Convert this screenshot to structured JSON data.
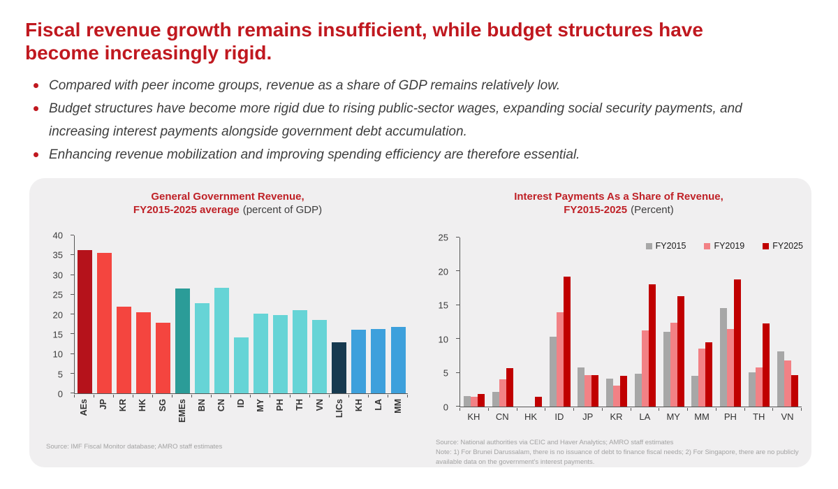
{
  "slide": {
    "title_line1": "Fiscal revenue growth remains insufficient, while budget structures have",
    "title_line2": "become increasingly rigid.",
    "bullets": [
      "Compared with peer income groups, revenue as a share of GDP remains relatively low.",
      "Budget structures have become more rigid due to rising public-sector wages, expanding social security payments, and increasing interest payments alongside government debt accumulation.",
      "Enhancing revenue mobilization and improving spending efficiency are therefore essential."
    ],
    "colors": {
      "title_red": "#c0181f",
      "chart_title_red": "#bf2127",
      "body_text": "#3d3d3d",
      "card_bg": "#f0eff0",
      "axis": "#555555",
      "muted_text": "#a2a2a2"
    }
  },
  "chart_data": [
    {
      "type": "bar",
      "title_line1": "General Government Revenue,",
      "title_line2_red": "FY2015-2025 average",
      "title_line2_black": "(percent of GDP)",
      "categories": [
        "AEs",
        "JP",
        "KR",
        "HK",
        "SG",
        "EMEs",
        "BN",
        "CN",
        "ID",
        "MY",
        "PH",
        "TH",
        "VN",
        "LICs",
        "KH",
        "LA",
        "MM"
      ],
      "values": [
        36.2,
        35.5,
        22.0,
        20.6,
        17.9,
        26.6,
        22.8,
        26.8,
        14.2,
        20.2,
        19.8,
        21.0,
        18.6,
        12.9,
        16.1,
        16.2,
        16.8
      ],
      "bar_colors": [
        "#b5121b",
        "#f4453f",
        "#f4453f",
        "#f4453f",
        "#f4453f",
        "#2b9c98",
        "#66d4d6",
        "#66d4d6",
        "#66d4d6",
        "#66d4d6",
        "#66d4d6",
        "#66d4d6",
        "#66d4d6",
        "#16394f",
        "#3da0dc",
        "#3da0dc",
        "#3da0dc"
      ],
      "xlabel": "",
      "ylabel": "",
      "ylim": [
        0,
        40
      ],
      "yticks": [
        0,
        5,
        10,
        15,
        20,
        25,
        30,
        35,
        40
      ],
      "grid": false,
      "x_label_rotation": -90,
      "source": "Source: IMF Fiscal Monitor database; AMRO staff estimates"
    },
    {
      "type": "bar",
      "title_line1": "Interest Payments As a Share of Revenue,",
      "title_line2_red": "FY2015-2025",
      "title_line2_black": "(Percent)",
      "categories": [
        "KH",
        "CN",
        "HK",
        "ID",
        "JP",
        "KR",
        "LA",
        "MY",
        "MM",
        "PH",
        "TH",
        "VN"
      ],
      "series": [
        {
          "name": "FY2015",
          "color": "#a7a7a7",
          "values": [
            1.5,
            2.2,
            0,
            10.3,
            5.8,
            4.1,
            4.9,
            11.1,
            4.5,
            14.6,
            5.1,
            8.2
          ]
        },
        {
          "name": "FY2019",
          "color": "#f28185",
          "values": [
            1.4,
            4.0,
            0,
            13.9,
            4.6,
            3.1,
            11.3,
            12.4,
            8.6,
            11.5,
            5.8,
            6.8
          ]
        },
        {
          "name": "FY2025",
          "color": "#c00000",
          "values": [
            1.9,
            5.7,
            1.4,
            19.2,
            4.7,
            4.5,
            18.1,
            16.3,
            9.5,
            18.8,
            12.3,
            4.6
          ]
        }
      ],
      "xlabel": "",
      "ylabel": "",
      "ylim": [
        0,
        25
      ],
      "yticks": [
        0,
        5,
        10,
        15,
        20,
        25
      ],
      "grid": false,
      "legend_position": "top-right",
      "source": "Source: National authorities via CEIC and Haver Analytics; AMRO staff estimates",
      "note": "Note: 1) For Brunei Darussalam, there is no issuance of debt to finance fiscal needs; 2) For Singapore, there are no publicly available data on the government’s interest payments."
    }
  ]
}
